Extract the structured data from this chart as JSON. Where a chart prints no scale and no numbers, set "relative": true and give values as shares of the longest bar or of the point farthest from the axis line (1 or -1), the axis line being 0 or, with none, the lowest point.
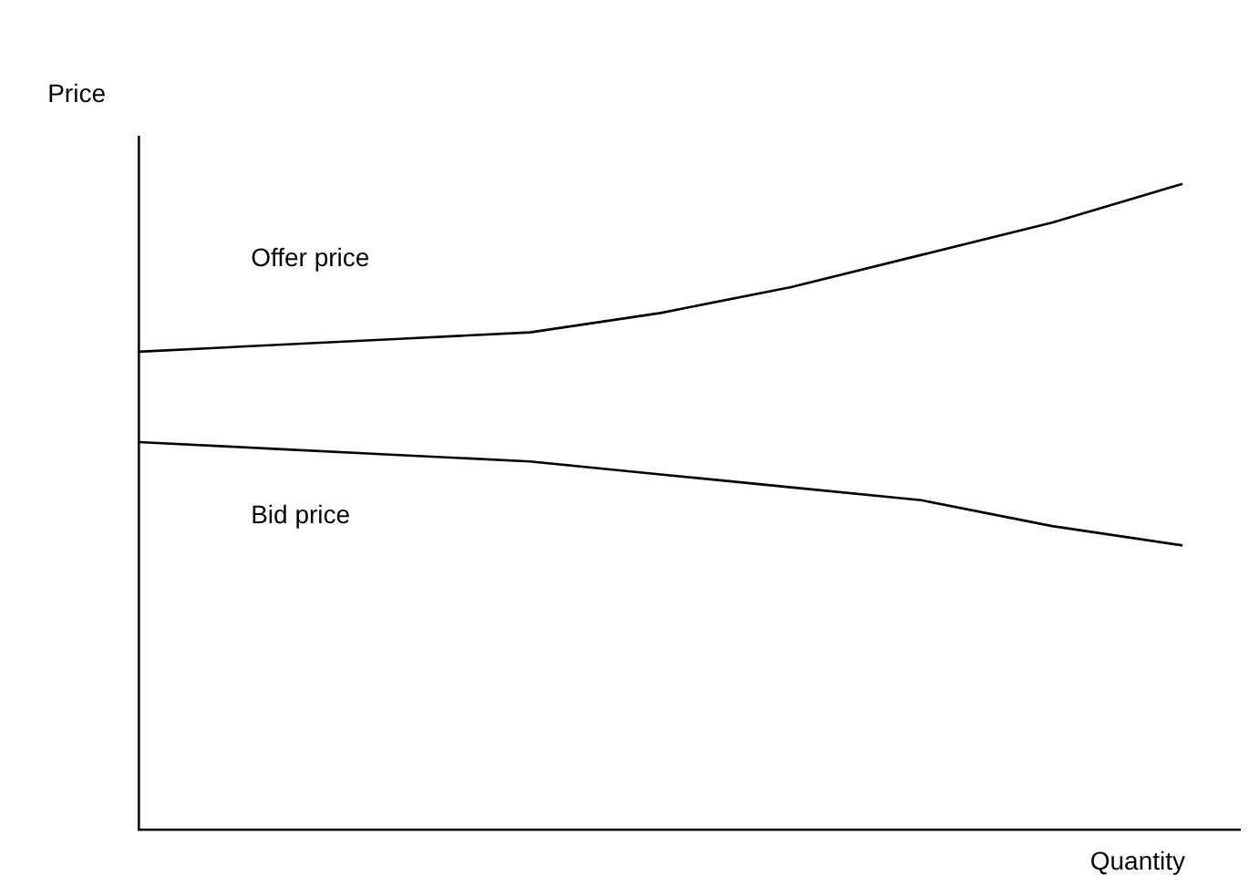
{
  "chart_data": {
    "type": "line",
    "relative": true,
    "xlabel": "Quantity",
    "ylabel": "Price",
    "categories": [
      null,
      null,
      null,
      null,
      null,
      null,
      null,
      null,
      null
    ],
    "series": [
      {
        "name": "Offer price",
        "color": "#000000",
        "values": [
          0.74,
          0.75,
          0.76,
          0.77,
          0.8,
          0.84,
          0.89,
          0.94,
          1
        ]
      },
      {
        "name": "Bid price",
        "color": "#000000",
        "values": [
          0.6,
          0.59,
          0.58,
          0.57,
          0.55,
          0.53,
          0.51,
          0.47,
          0.44
        ]
      }
    ],
    "legend": false,
    "grid": false,
    "marker": "none",
    "line_style": "solid"
  }
}
